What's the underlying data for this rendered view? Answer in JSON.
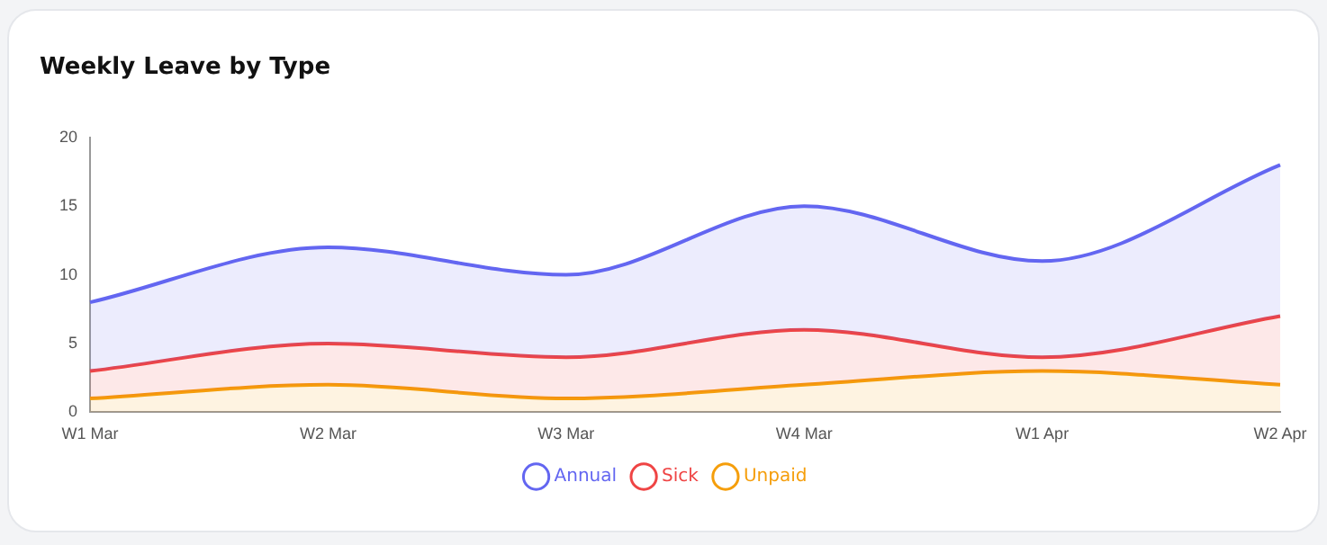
{
  "chart_data": {
    "type": "area",
    "title": "Weekly Leave by Type",
    "categories": [
      "W1 Mar",
      "W2 Mar",
      "W3 Mar",
      "W4 Mar",
      "W1 Apr",
      "W2 Apr"
    ],
    "series": [
      {
        "name": "Annual",
        "color": "#6366f1",
        "values": [
          8,
          12,
          10,
          15,
          11,
          18
        ]
      },
      {
        "name": "Sick",
        "color": "#ef4444",
        "values": [
          3,
          5,
          4,
          6,
          4,
          7
        ]
      },
      {
        "name": "Unpaid",
        "color": "#f59e0b",
        "values": [
          1,
          2,
          1,
          2,
          3,
          2
        ]
      }
    ],
    "ylim": [
      0,
      20
    ],
    "yticks": [
      0,
      5,
      10,
      15,
      20
    ],
    "grid": false,
    "legend": "bottom",
    "marker": "none",
    "line_style": "solid"
  }
}
